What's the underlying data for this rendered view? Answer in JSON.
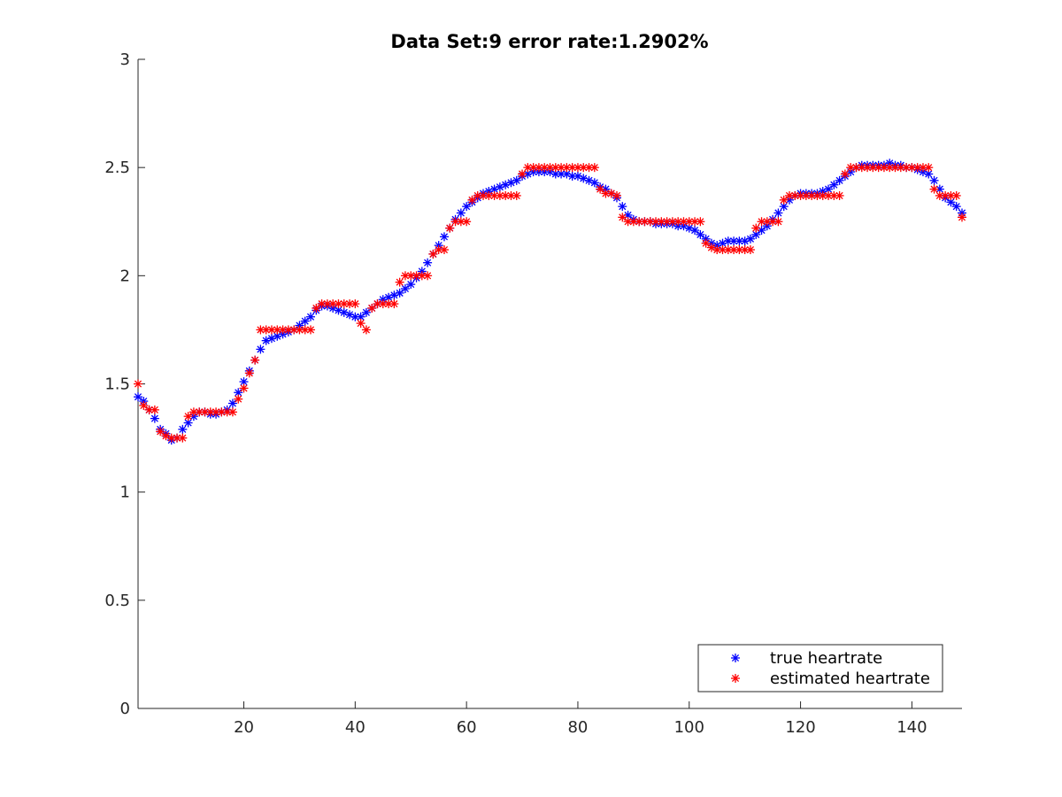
{
  "chart_data": {
    "type": "scatter",
    "title": "Data Set:9 error rate:1.2902%",
    "xlabel": "",
    "ylabel": "",
    "xlim": [
      1,
      149
    ],
    "ylim": [
      0,
      3
    ],
    "xticks": [
      20,
      40,
      60,
      80,
      100,
      120,
      140
    ],
    "xtick_labels": [
      "20",
      "40",
      "60",
      "80",
      "100",
      "120",
      "140"
    ],
    "yticks": [
      0,
      0.5,
      1,
      1.5,
      2,
      2.5,
      3
    ],
    "ytick_labels": [
      "0",
      "0.5",
      "1",
      "1.5",
      "2",
      "2.5",
      "3"
    ],
    "grid": false,
    "legend": {
      "position": "bottom-right"
    },
    "marker": "*",
    "x": [
      1,
      2,
      3,
      4,
      5,
      6,
      7,
      8,
      9,
      10,
      11,
      12,
      13,
      14,
      15,
      16,
      17,
      18,
      19,
      20,
      21,
      22,
      23,
      24,
      25,
      26,
      27,
      28,
      29,
      30,
      31,
      32,
      33,
      34,
      35,
      36,
      37,
      38,
      39,
      40,
      41,
      42,
      43,
      44,
      45,
      46,
      47,
      48,
      49,
      50,
      51,
      52,
      53,
      54,
      55,
      56,
      57,
      58,
      59,
      60,
      61,
      62,
      63,
      64,
      65,
      66,
      67,
      68,
      69,
      70,
      71,
      72,
      73,
      74,
      75,
      76,
      77,
      78,
      79,
      80,
      81,
      82,
      83,
      84,
      85,
      86,
      87,
      88,
      89,
      90,
      91,
      92,
      93,
      94,
      95,
      96,
      97,
      98,
      99,
      100,
      101,
      102,
      103,
      104,
      105,
      106,
      107,
      108,
      109,
      110,
      111,
      112,
      113,
      114,
      115,
      116,
      117,
      118,
      119,
      120,
      121,
      122,
      123,
      124,
      125,
      126,
      127,
      128,
      129,
      130,
      131,
      132,
      133,
      134,
      135,
      136,
      137,
      138,
      139,
      140,
      141,
      142,
      143,
      144,
      145,
      146,
      147,
      148,
      149
    ],
    "series": [
      {
        "name": "true heartrate",
        "color": "#0000ff",
        "values": [
          1.44,
          1.42,
          1.38,
          1.34,
          1.29,
          1.27,
          1.24,
          1.25,
          1.29,
          1.32,
          1.35,
          1.37,
          1.37,
          1.36,
          1.36,
          1.37,
          1.38,
          1.41,
          1.46,
          1.51,
          1.56,
          1.61,
          1.66,
          1.7,
          1.71,
          1.72,
          1.73,
          1.74,
          1.75,
          1.77,
          1.79,
          1.81,
          1.84,
          1.86,
          1.86,
          1.85,
          1.84,
          1.83,
          1.82,
          1.81,
          1.81,
          1.83,
          1.85,
          1.87,
          1.89,
          1.9,
          1.91,
          1.92,
          1.94,
          1.96,
          1.99,
          2.02,
          2.06,
          2.1,
          2.14,
          2.18,
          2.22,
          2.26,
          2.29,
          2.32,
          2.34,
          2.36,
          2.38,
          2.39,
          2.4,
          2.41,
          2.42,
          2.43,
          2.44,
          2.46,
          2.47,
          2.48,
          2.48,
          2.48,
          2.48,
          2.47,
          2.47,
          2.47,
          2.46,
          2.46,
          2.45,
          2.44,
          2.43,
          2.41,
          2.4,
          2.38,
          2.36,
          2.32,
          2.28,
          2.26,
          2.25,
          2.25,
          2.25,
          2.24,
          2.24,
          2.24,
          2.24,
          2.23,
          2.23,
          2.22,
          2.21,
          2.19,
          2.17,
          2.15,
          2.14,
          2.15,
          2.16,
          2.16,
          2.16,
          2.16,
          2.17,
          2.19,
          2.21,
          2.23,
          2.26,
          2.29,
          2.32,
          2.35,
          2.37,
          2.38,
          2.38,
          2.38,
          2.38,
          2.39,
          2.4,
          2.42,
          2.44,
          2.46,
          2.48,
          2.5,
          2.51,
          2.51,
          2.51,
          2.51,
          2.51,
          2.52,
          2.51,
          2.51,
          2.5,
          2.5,
          2.49,
          2.48,
          2.47,
          2.44,
          2.4,
          2.36,
          2.34,
          2.32,
          2.29
        ]
      },
      {
        "name": "estimated heartrate",
        "color": "#ff0000",
        "values": [
          1.5,
          1.4,
          1.38,
          1.38,
          1.28,
          1.26,
          1.25,
          1.25,
          1.25,
          1.35,
          1.37,
          1.37,
          1.37,
          1.37,
          1.37,
          1.37,
          1.37,
          1.37,
          1.43,
          1.48,
          1.55,
          1.61,
          1.75,
          1.75,
          1.75,
          1.75,
          1.75,
          1.75,
          1.75,
          1.75,
          1.75,
          1.75,
          1.85,
          1.87,
          1.87,
          1.87,
          1.87,
          1.87,
          1.87,
          1.87,
          1.78,
          1.75,
          1.85,
          1.87,
          1.87,
          1.87,
          1.87,
          1.97,
          2.0,
          2.0,
          2.0,
          2.0,
          2.0,
          2.1,
          2.12,
          2.12,
          2.22,
          2.25,
          2.25,
          2.25,
          2.35,
          2.37,
          2.37,
          2.37,
          2.37,
          2.37,
          2.37,
          2.37,
          2.37,
          2.47,
          2.5,
          2.5,
          2.5,
          2.5,
          2.5,
          2.5,
          2.5,
          2.5,
          2.5,
          2.5,
          2.5,
          2.5,
          2.5,
          2.4,
          2.38,
          2.38,
          2.37,
          2.27,
          2.25,
          2.25,
          2.25,
          2.25,
          2.25,
          2.25,
          2.25,
          2.25,
          2.25,
          2.25,
          2.25,
          2.25,
          2.25,
          2.25,
          2.15,
          2.13,
          2.12,
          2.12,
          2.12,
          2.12,
          2.12,
          2.12,
          2.12,
          2.22,
          2.25,
          2.25,
          2.25,
          2.25,
          2.35,
          2.37,
          2.37,
          2.37,
          2.37,
          2.37,
          2.37,
          2.37,
          2.37,
          2.37,
          2.37,
          2.47,
          2.5,
          2.5,
          2.5,
          2.5,
          2.5,
          2.5,
          2.5,
          2.5,
          2.5,
          2.5,
          2.5,
          2.5,
          2.5,
          2.5,
          2.5,
          2.4,
          2.37,
          2.37,
          2.37,
          2.37,
          2.27
        ]
      }
    ]
  }
}
